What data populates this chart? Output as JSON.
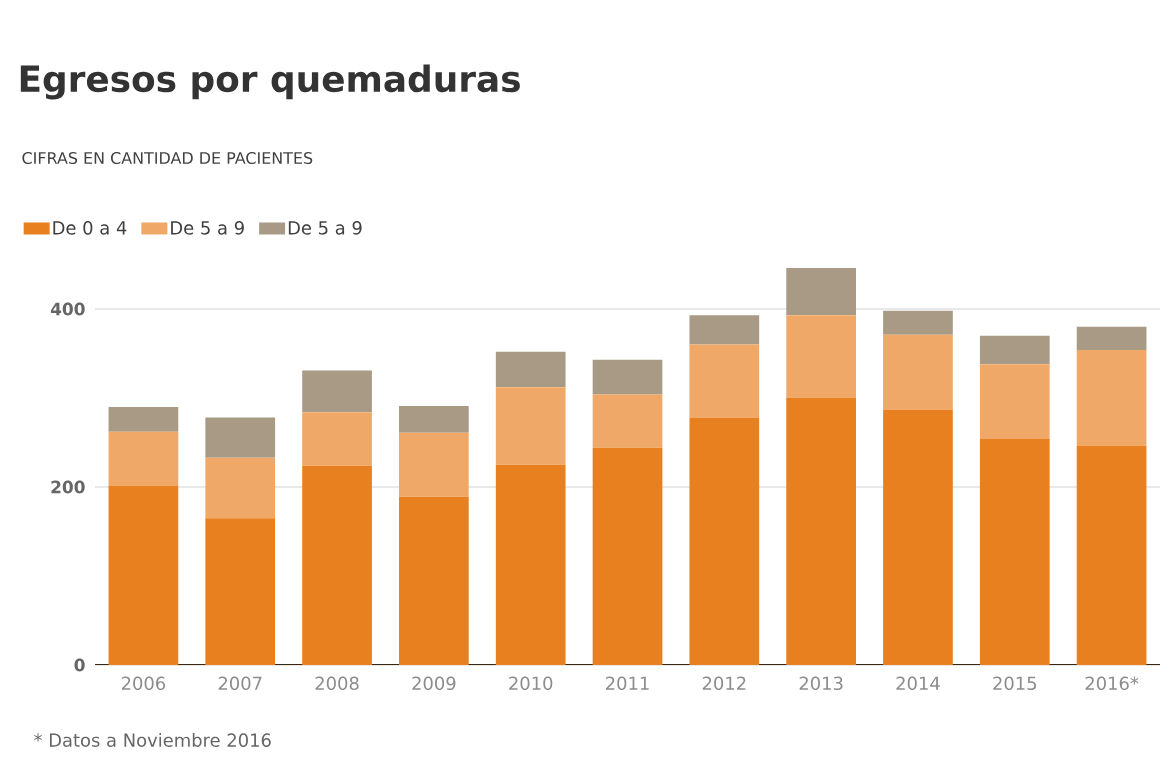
{
  "chart_data": {
    "type": "bar",
    "title": "Egresos por quemaduras",
    "subtitle": "CIFRAS EN CANTIDAD DE PACIENTES",
    "categories": [
      "2006",
      "2007",
      "2008",
      "2009",
      "2010",
      "2011",
      "2012",
      "2013",
      "2014",
      "2015",
      "2016*"
    ],
    "series": [
      {
        "name": "De 0 a 4",
        "color": "#e8801f",
        "values": [
          201,
          165,
          224,
          189,
          225,
          244,
          278,
          300,
          287,
          254,
          246
        ]
      },
      {
        "name": "De 5 a 9",
        "color": "#f0a868",
        "values": [
          61,
          68,
          60,
          72,
          87,
          60,
          82,
          93,
          84,
          84,
          108
        ]
      },
      {
        "name": "De 5 a 9",
        "color": "#a89a85",
        "values": [
          28,
          45,
          47,
          30,
          40,
          39,
          33,
          53,
          27,
          32,
          26
        ]
      }
    ],
    "stacked": true,
    "ylim": [
      0,
      446
    ],
    "yticks": [
      0,
      200,
      400
    ],
    "grid": "y",
    "legend": "top left",
    "annotations": [
      "* Datos a Noviembre 2016"
    ]
  }
}
